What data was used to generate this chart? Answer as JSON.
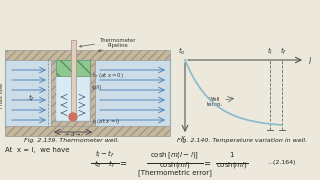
{
  "bg_color": "#ede8dc",
  "fig139_caption": "Fig. 2.139. Thermometer well.",
  "fig140_caption": "Fig. 2.140. Temperature variation in well.",
  "at_x_text": "At  x = l,  we have",
  "equation_num": "...(2.164)",
  "thermo_error": "[Thermometric error]",
  "tank_facecolor": "#cddde8",
  "tank_edge": "#8ab0c0",
  "hatch_face": "#c8b898",
  "hatch_color": "#999",
  "well_inner_face": "#d8eaf4",
  "green_face": "#8cc890",
  "green_edge": "#5a9060",
  "thermo_face": "#ddd0c0",
  "thermo_edge": "#aa9080",
  "bulb_color": "#cc7060",
  "arrow_color": "#5588bb",
  "curve_color": "#88bbcc",
  "dashed_color": "#666",
  "text_color": "#222",
  "label_color": "#333"
}
